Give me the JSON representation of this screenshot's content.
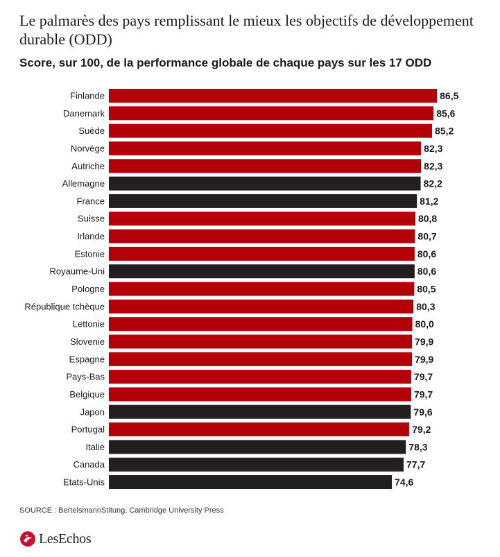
{
  "header": {
    "title": "Le palmarès des pays remplissant le mieux les objectifs de développement durable (ODD)",
    "subtitle": "Score, sur 100, de la performance globale de chaque pays sur les 17 ODD"
  },
  "footer": {
    "source": "SOURCE : BertelsmannStitung, Cambridge University Press",
    "logo": "LesEchos"
  },
  "colors": {
    "red": "#b30009",
    "dark": "#231f20",
    "logo_red": "#c8102e"
  },
  "chart_data": {
    "type": "bar",
    "orientation": "horizontal",
    "categories": [
      "Finlande",
      "Danemark",
      "Suède",
      "Norvège",
      "Autriche",
      "Allemagne",
      "France",
      "Suisse",
      "Irlande",
      "Estonie",
      "Royaume-Uni",
      "Pologne",
      "République tchèque",
      "Lettonie",
      "Slovenie",
      "Espagne",
      "Pays-Bas",
      "Belgique",
      "Japon",
      "Portugal",
      "Italie",
      "Canada",
      "Etats-Unis"
    ],
    "values": [
      86.5,
      85.6,
      85.2,
      82.3,
      82.3,
      82.2,
      81.2,
      80.8,
      80.7,
      80.6,
      80.6,
      80.5,
      80.3,
      80.0,
      79.9,
      79.9,
      79.7,
      79.7,
      79.6,
      79.2,
      78.3,
      77.7,
      74.6
    ],
    "value_labels": [
      "86,5",
      "85,6",
      "85,2",
      "82,3",
      "82,3",
      "82,2",
      "81,2",
      "80,8",
      "80,7",
      "80,6",
      "80,6",
      "80,5",
      "80,3",
      "80,0",
      "79,9",
      "79,9",
      "79,7",
      "79,7",
      "79,6",
      "79,2",
      "78,3",
      "77,7",
      "74,6"
    ],
    "group": [
      "eu",
      "eu",
      "eu",
      "eu",
      "eu",
      "other",
      "other",
      "eu",
      "eu",
      "eu",
      "other",
      "eu",
      "eu",
      "eu",
      "eu",
      "eu",
      "eu",
      "eu",
      "other",
      "eu",
      "other",
      "other",
      "other"
    ],
    "xlim": [
      0,
      100
    ],
    "title": "Le palmarès des pays remplissant le mieux les objectifs de développement durable (ODD)",
    "subtitle": "Score, sur 100, de la performance globale de chaque pays sur les 17 ODD",
    "xlabel": "",
    "ylabel": "",
    "grid": false,
    "legend": "none"
  }
}
